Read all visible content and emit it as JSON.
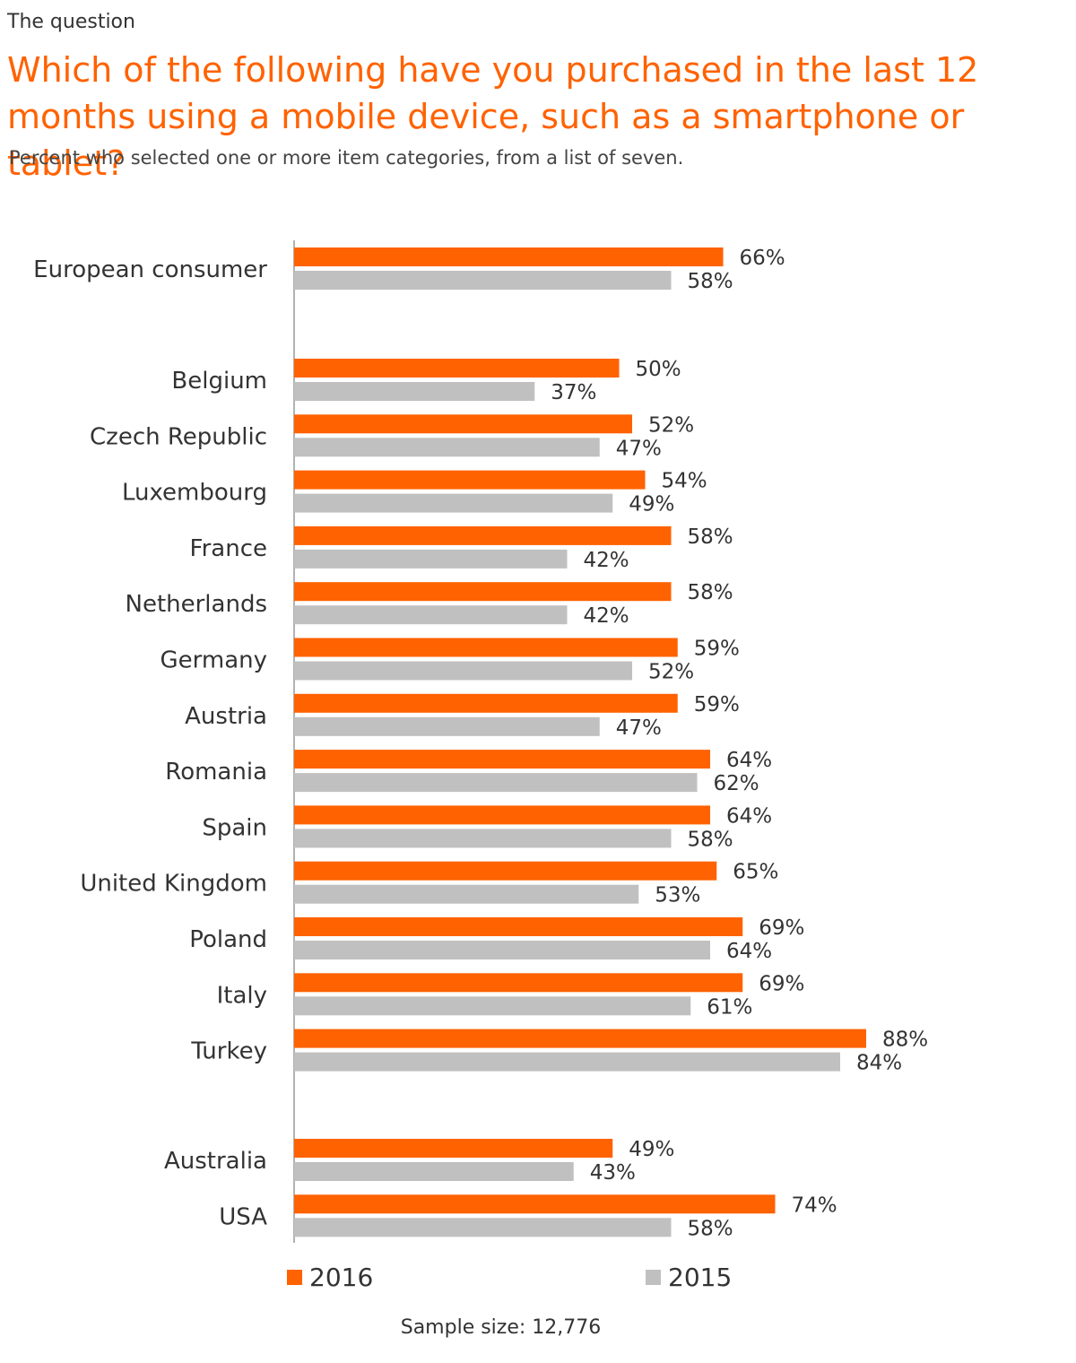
{
  "header": {
    "kicker": "The question",
    "title": "Which of the following have you purchased in the last 12 months using a mobile device, such as a smartphone or tablet?",
    "subtitle": "Percent who selected one or more item categories, from a list of seven."
  },
  "footer": {
    "sample_size": "Sample size: 12,776"
  },
  "colors": {
    "accent": "#ff6200",
    "series_2016": "#ff6200",
    "series_2015": "#c0c0c0",
    "axis": "#999999"
  },
  "chart_data": {
    "type": "bar",
    "orientation": "horizontal",
    "title": "Which of the following have you purchased in the last 12 months using a mobile device, such as a smartphone or tablet?",
    "subtitle": "Percent who selected one or more item categories, from a list of seven.",
    "categories": [
      "European consumer",
      "Belgium",
      "Czech Republic",
      "Luxembourg",
      "France",
      "Netherlands",
      "Germany",
      "Austria",
      "Romania",
      "Spain",
      "United Kingdom",
      "Poland",
      "Italy",
      "Turkey",
      "Australia",
      "USA"
    ],
    "groups": [
      [
        "European consumer"
      ],
      [
        "Belgium",
        "Czech Republic",
        "Luxembourg",
        "France",
        "Netherlands",
        "Germany",
        "Austria",
        "Romania",
        "Spain",
        "United Kingdom",
        "Poland",
        "Italy",
        "Turkey"
      ],
      [
        "Australia",
        "USA"
      ]
    ],
    "series": [
      {
        "name": "2016",
        "color": "#ff6200",
        "values": [
          66,
          50,
          52,
          54,
          58,
          58,
          59,
          59,
          64,
          64,
          65,
          69,
          69,
          88,
          49,
          74
        ]
      },
      {
        "name": "2015",
        "color": "#c0c0c0",
        "values": [
          58,
          37,
          47,
          49,
          42,
          42,
          52,
          47,
          62,
          58,
          53,
          64,
          61,
          84,
          43,
          58
        ]
      }
    ],
    "value_suffix": "%",
    "xlim": [
      0,
      100
    ],
    "grid": false,
    "legend_position": "bottom"
  }
}
